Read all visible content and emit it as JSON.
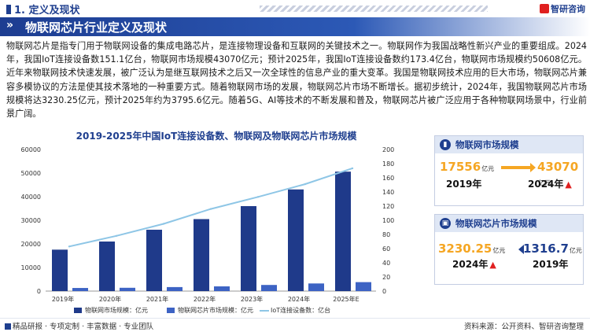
{
  "header": {
    "section": "1. 定义及现状",
    "logo_text": "智研咨询"
  },
  "title": "物联网芯片行业定义及现状",
  "paragraph": "物联网芯片是指专门用于物联网设备的集成电路芯片，是连接物理设备和互联网的关键技术之一。物联网作为我国战略性新兴产业的重要组成。2024年，我国IoT连接设备数151.1亿台，物联网市场规模43070亿元；预计2025年，我国IoT连接设备数约173.4亿台，物联网市场规模约50608亿元。近年来物联网技术快速发展，被广泛认为是继互联网技术之后又一次全球性的信息产业的重大变革。我国是物联网技术应用的巨大市场，物联网芯片兼容多模协议的方法是使其技术落地的一种重要方式。随着物联网市场的发展，物联网芯片市场不断增长。据初步统计，2024年，我国物联网芯片市场规模将达3230.25亿元，预计2025年约为3795.6亿元。随着5G、AI等技术的不断发展和普及，物联网芯片被广泛应用于各种物联网场景中，行业前景广阔。",
  "chart_title": "2019-2025年中国IoT连接设备数、物联网及物联网芯片市场规模",
  "chart_data": {
    "type": "bar",
    "categories": [
      "2019年",
      "2020年",
      "2021年",
      "2022年",
      "2023年",
      "2024年",
      "2025年E"
    ],
    "series": [
      {
        "name": "物联网市场规模：亿元",
        "type": "bar",
        "axis": "left",
        "color": "#1f3a8a",
        "values": [
          17556,
          21000,
          26000,
          30500,
          36000,
          43070,
          50608
        ]
      },
      {
        "name": "物联网芯片市场规模：亿元",
        "type": "bar",
        "axis": "left",
        "color": "#3d63c4",
        "values": [
          1316.7,
          1400,
          1700,
          2000,
          2600,
          3230.25,
          3795.6
        ]
      },
      {
        "name": "IoT连接设备数：亿台",
        "type": "line",
        "axis": "right",
        "color": "#8ec6e6",
        "values": [
          63,
          78,
          95,
          116,
          133,
          151.1,
          173.4
        ]
      }
    ],
    "ylim_left": [
      0,
      60000
    ],
    "yticks_left": [
      "0",
      "10000",
      "20000",
      "30000",
      "40000",
      "50000",
      "60000"
    ],
    "ylim_right": [
      0,
      200
    ],
    "yticks_right": [
      "0",
      "20",
      "40",
      "60",
      "80",
      "100",
      "120",
      "140",
      "160",
      "180",
      "200"
    ],
    "legend_position": "bottom"
  },
  "card1": {
    "title": "物联网市场规模",
    "from_value": "17556",
    "from_unit": "亿元",
    "from_year": "2019年",
    "to_value": "43070",
    "to_unit": "亿元",
    "to_year": "2024年",
    "arrow_icon": "up-arrow-icon"
  },
  "card2": {
    "title": "物联网芯片市场规模",
    "from_value": "3230.25",
    "from_unit": "亿元",
    "from_year": "2024年",
    "to_value": "1316.7",
    "to_unit": "亿元",
    "to_year": "2019年",
    "arrow_icon": "up-arrow-icon"
  },
  "footer": {
    "left": "精品研报 · 专项定制 · 丰富数据 · 专业团队",
    "source": "资料来源：公开资料、智研咨询整理"
  },
  "colors": {
    "brand": "#1f3f8f",
    "accent": "#f5a623",
    "up": "#e02020"
  }
}
